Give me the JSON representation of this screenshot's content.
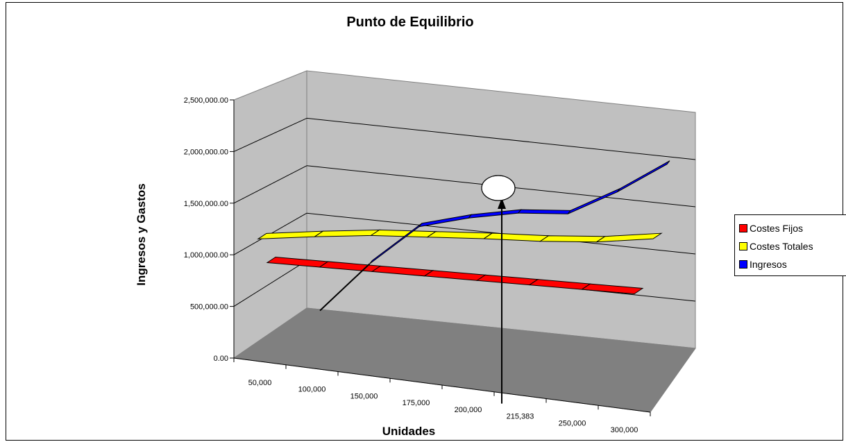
{
  "chart_data": {
    "type": "line",
    "title": "Punto de Equilibrio",
    "xlabel": "Unidades",
    "ylabel": "Ingresos y Gastos",
    "categories": [
      "50,000",
      "100,000",
      "150,000",
      "175,000",
      "200,000",
      "215,383",
      "250,000",
      "300,000"
    ],
    "ylim": [
      0,
      2500000
    ],
    "yticks": [
      "0.00",
      "500,000.00",
      "1,000,000.00",
      "1,500,000.00",
      "2,000,000.00",
      "2,500,000.00"
    ],
    "series": [
      {
        "name": "Costes Fijos",
        "color": "#ff0000",
        "values": [
          1100000,
          1100000,
          1100000,
          1100000,
          1100000,
          1100000,
          1100000,
          1100000
        ]
      },
      {
        "name": "Costes Totales",
        "color": "#ffff00",
        "values": [
          1350000,
          1420000,
          1480000,
          1510000,
          1540000,
          1560000,
          1600000,
          1680000
        ]
      },
      {
        "name": "Ingresos",
        "color": "#0000ff",
        "values": [
          500000,
          1000000,
          1400000,
          1500000,
          1560000,
          1560000,
          1800000,
          2100000
        ]
      }
    ],
    "grid": true,
    "legend_position": "right",
    "annotation": {
      "category": "215,383",
      "marker": "ellipse-callout"
    }
  }
}
